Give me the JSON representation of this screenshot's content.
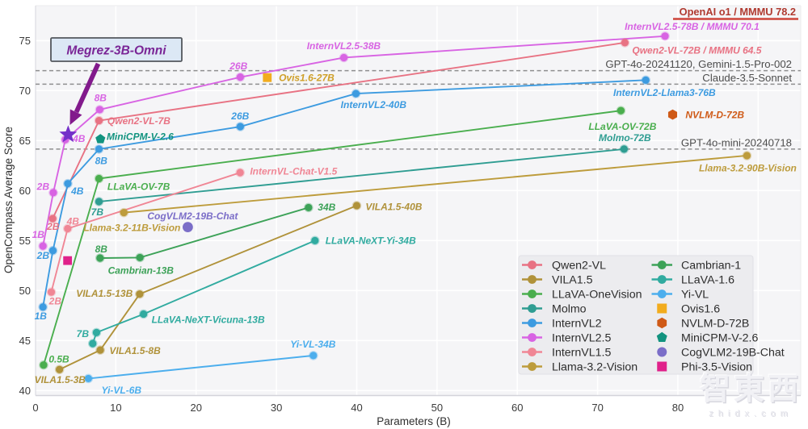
{
  "watermark": {
    "cn": "智東西",
    "latin": "zhidx.com"
  },
  "chart_data": {
    "type": "line",
    "title": "",
    "xlabel": "Parameters (B)",
    "ylabel": "OpenCompass Average Score",
    "xlim": [
      0,
      95.3
    ],
    "ylim": [
      39.5,
      78.5
    ],
    "x_ticks": [
      0,
      10,
      20,
      30,
      40,
      50,
      60,
      70,
      80
    ],
    "y_ticks": [
      40,
      45,
      50,
      55,
      60,
      65,
      70,
      75
    ],
    "x_grid": [
      10,
      20,
      30,
      40,
      50,
      60,
      70,
      80,
      90
    ],
    "grid": true,
    "legend_position": "bottom-right",
    "series": [
      {
        "name": "Qwen2-VL",
        "color": "#e87283",
        "points": [
          [
            2.13,
            57.2
          ],
          [
            7.9,
            67.0
          ],
          [
            73.4,
            74.8
          ]
        ]
      },
      {
        "name": "VILA1.5",
        "color": "#b0923a",
        "points": [
          [
            2.98,
            42.1
          ],
          [
            8.06,
            44.05
          ],
          [
            12.97,
            49.65
          ],
          [
            40.0,
            58.5
          ]
        ]
      },
      {
        "name": "LLaVA-OneVision",
        "color": "#4aae4e",
        "points": [
          [
            1.0,
            42.55
          ],
          [
            7.9,
            61.2
          ],
          [
            72.9,
            68.0
          ]
        ]
      },
      {
        "name": "Molmo",
        "color": "#2f9d92",
        "points": [
          [
            7.9,
            58.9
          ],
          [
            73.3,
            64.15
          ]
        ]
      },
      {
        "name": "InternVL2",
        "color": "#3d9be0",
        "points": [
          [
            0.92,
            48.35
          ],
          [
            2.16,
            54.0
          ],
          [
            4.02,
            60.7
          ],
          [
            7.9,
            64.15
          ],
          [
            25.5,
            66.4
          ],
          [
            39.9,
            69.7
          ],
          [
            76.0,
            71.05
          ]
        ]
      },
      {
        "name": "InternVL2.5",
        "color": "#d864e3",
        "points": [
          [
            0.92,
            54.45
          ],
          [
            2.21,
            59.8
          ],
          [
            3.71,
            65.1
          ],
          [
            7.99,
            68.1
          ],
          [
            25.5,
            71.35
          ],
          [
            38.4,
            73.3
          ],
          [
            78.4,
            75.45
          ]
        ]
      },
      {
        "name": "InternVL1.5",
        "color": "#f08695",
        "points": [
          [
            1.96,
            49.85
          ],
          [
            4.0,
            56.2
          ],
          [
            25.48,
            61.8
          ]
        ]
      },
      {
        "name": "Llama-3.2-Vision",
        "color": "#bd9c3c",
        "points": [
          [
            11.0,
            57.8
          ],
          [
            88.6,
            63.5
          ]
        ]
      },
      {
        "name": "Cambrian-1",
        "color": "#3da258",
        "points": [
          [
            8.03,
            53.25
          ],
          [
            13.0,
            53.3
          ],
          [
            34.0,
            58.3
          ]
        ]
      },
      {
        "name": "LLaVA-1.6",
        "color": "#31aba0",
        "points": [
          [
            7.12,
            44.7
          ],
          [
            7.59,
            45.8
          ],
          [
            13.45,
            47.65
          ],
          [
            34.8,
            55.0
          ]
        ]
      },
      {
        "name": "Yi-VL",
        "color": "#4caeed",
        "points": [
          [
            6.58,
            41.2
          ],
          [
            34.6,
            43.5
          ]
        ]
      }
    ],
    "markers": [
      {
        "name": "Ovis1.6-27B",
        "shape": "square",
        "color": "#f2ac1e",
        "x": 28.86,
        "y": 71.3
      },
      {
        "name": "NVLM-D-72B",
        "shape": "hexagon",
        "color": "#cf5a17",
        "x": 79.35,
        "y": 67.6
      },
      {
        "name": "MiniCPM-V-2.6",
        "shape": "pentagon",
        "color": "#12937f",
        "x": 8.08,
        "y": 65.15
      },
      {
        "name": "CogVLM2-19B-Chat",
        "shape": "circle",
        "color": "#7b6ec8",
        "x": 18.96,
        "y": 56.35
      },
      {
        "name": "Phi-3.5-Vision",
        "shape": "square",
        "color": "#e0218a",
        "x": 3.99,
        "y": 53.0
      }
    ],
    "highlight": {
      "name": "Megrez-3B-Omni",
      "x": 4.06,
      "y": 65.6,
      "star_color": "#7430c9",
      "arrow_color": "#821a8c",
      "callout_text": "Megrez-3B-Omni",
      "callout_text_color": "#7a2596",
      "callout_fill": "#dce8f5",
      "callout_border": "#53575d"
    },
    "annotations": [
      {
        "text": "1B",
        "x": 0.33,
        "y": 55.6,
        "color": "#d864e3",
        "anchor": "middle"
      },
      {
        "text": "2B",
        "x": 0.94,
        "y": 60.4,
        "color": "#d864e3",
        "anchor": "middle"
      },
      {
        "text": "4B",
        "x": 5.41,
        "y": 65.2,
        "color": "#d864e3",
        "anchor": "middle"
      },
      {
        "text": "8B",
        "x": 8.08,
        "y": 69.3,
        "color": "#d864e3",
        "anchor": "middle"
      },
      {
        "text": "26B",
        "x": 25.29,
        "y": 72.45,
        "color": "#d864e3",
        "anchor": "middle"
      },
      {
        "text": "InternVL2.5-38B",
        "x": 38.38,
        "y": 74.5,
        "color": "#d864e3",
        "anchor": "middle"
      },
      {
        "text": "InternVL2.5-78B / MMMU 70.1",
        "x": 81.76,
        "y": 76.4,
        "color": "#d864e3",
        "anchor": "middle"
      },
      {
        "text": "Qwen2-VL-72B / MMMU 64.5",
        "x": 82.36,
        "y": 74.05,
        "color": "#e87283",
        "anchor": "middle"
      },
      {
        "text": "Qwen2-VL-7B",
        "x": 8.95,
        "y": 67.0,
        "color": "#e87283",
        "anchor": "start"
      },
      {
        "text": "2B",
        "x": 2.19,
        "y": 56.4,
        "color": "#e87283",
        "anchor": "middle"
      },
      {
        "text": "MiniCPM-V-2.6",
        "x": 8.85,
        "y": 65.4,
        "color": "#12937f",
        "anchor": "start"
      },
      {
        "text": "8B",
        "x": 8.18,
        "y": 63.0,
        "color": "#3d9be0",
        "anchor": "middle"
      },
      {
        "text": "LLaVA-OV-7B",
        "x": 8.95,
        "y": 60.4,
        "color": "#4aae4e",
        "anchor": "start"
      },
      {
        "text": "7B",
        "x": 7.68,
        "y": 57.85,
        "color": "#2f9d92",
        "anchor": "middle"
      },
      {
        "text": "InternVL-Chat-V1.5",
        "x": 26.7,
        "y": 61.95,
        "color": "#f08695",
        "anchor": "start"
      },
      {
        "text": "26B",
        "x": 25.49,
        "y": 67.45,
        "color": "#3d9be0",
        "anchor": "middle"
      },
      {
        "text": "InternVL2-40B",
        "x": 42.1,
        "y": 68.6,
        "color": "#3d9be0",
        "anchor": "middle"
      },
      {
        "text": "InternVL2-Llama3-76B",
        "x": 78.33,
        "y": 69.8,
        "color": "#3d9be0",
        "anchor": "middle"
      },
      {
        "text": "NVLM-D-72B",
        "x": 80.95,
        "y": 67.6,
        "color": "#cf5a17",
        "anchor": "start"
      },
      {
        "text": "LLaVA-OV-72B",
        "x": 73.1,
        "y": 66.4,
        "color": "#4aae4e",
        "anchor": "middle"
      },
      {
        "text": "Molmo-72B",
        "x": 73.4,
        "y": 65.3,
        "color": "#2f9d92",
        "anchor": "middle"
      },
      {
        "text": "Llama-3.2-90B-Vision",
        "x": 88.7,
        "y": 62.25,
        "color": "#bd9c3c",
        "anchor": "middle"
      },
      {
        "text": "Llama-3.2-11B-Vision",
        "x": 12.01,
        "y": 56.3,
        "color": "#bd9c3c",
        "anchor": "middle"
      },
      {
        "text": "CogVLM2-19B-Chat",
        "x": 19.56,
        "y": 57.45,
        "color": "#7b6ec8",
        "anchor": "middle"
      },
      {
        "text": "Cambrian-13B",
        "x": 13.11,
        "y": 52.0,
        "color": "#3da258",
        "anchor": "middle"
      },
      {
        "text": "8B",
        "x": 8.18,
        "y": 54.15,
        "color": "#3da258",
        "anchor": "middle"
      },
      {
        "text": "34B",
        "x": 36.26,
        "y": 58.35,
        "color": "#3da258",
        "anchor": "middle"
      },
      {
        "text": "VILA1.5-40B",
        "x": 41.1,
        "y": 58.4,
        "color": "#b0923a",
        "anchor": "start"
      },
      {
        "text": "LLaVA-NeXT-Yi-34B",
        "x": 36.1,
        "y": 55.0,
        "color": "#31aba0",
        "anchor": "start"
      },
      {
        "text": "VILA1.5-13B",
        "x": 12.1,
        "y": 49.7,
        "color": "#b0923a",
        "anchor": "end"
      },
      {
        "text": "LLaVA-NeXT-Vicuna-13B",
        "x": 14.45,
        "y": 47.1,
        "color": "#31aba0",
        "anchor": "start"
      },
      {
        "text": "VILA1.5-8B",
        "x": 9.2,
        "y": 44.0,
        "color": "#b0923a",
        "anchor": "start"
      },
      {
        "text": "7B",
        "x": 5.87,
        "y": 45.7,
        "color": "#31aba0",
        "anchor": "middle"
      },
      {
        "text": "VILA1.5-3B",
        "x": 3.05,
        "y": 41.1,
        "color": "#b0923a",
        "anchor": "middle"
      },
      {
        "text": "0.5B",
        "x": 2.92,
        "y": 43.15,
        "color": "#4aae4e",
        "anchor": "middle"
      },
      {
        "text": "Yi-VL-6B",
        "x": 10.7,
        "y": 40.05,
        "color": "#4caeed",
        "anchor": "middle"
      },
      {
        "text": "Yi-VL-34B",
        "x": 34.55,
        "y": 44.65,
        "color": "#4caeed",
        "anchor": "middle"
      },
      {
        "text": "2B",
        "x": 0.94,
        "y": 53.5,
        "color": "#3d9be0",
        "anchor": "middle"
      },
      {
        "text": "4B",
        "x": 5.21,
        "y": 59.95,
        "color": "#3d9be0",
        "anchor": "middle"
      },
      {
        "text": "1B",
        "x": 0.63,
        "y": 47.45,
        "color": "#3d9be0",
        "anchor": "middle"
      },
      {
        "text": "2B",
        "x": 2.45,
        "y": 48.95,
        "color": "#f08695",
        "anchor": "middle"
      },
      {
        "text": "4B",
        "x": 4.66,
        "y": 56.95,
        "color": "#f08695",
        "anchor": "middle"
      },
      {
        "text": "Ovis1.6-27B",
        "x": 30.3,
        "y": 71.3,
        "color": "#cf9f26",
        "anchor": "start"
      }
    ],
    "reference_lines": [
      {
        "label": "GPT-4o-20241120, Gemini-1.5-Pro-002",
        "y": 72.0
      },
      {
        "label": "Claude-3.5-Sonnet",
        "y": 70.65
      },
      {
        "label": "GPT-4o-mini-20240718",
        "y": 64.15
      }
    ],
    "reference_note": {
      "text": "OpenAI o1 / MMMU 78.2",
      "color": "#b03a30",
      "underline_color": "#cd4339"
    },
    "legend": {
      "columns": [
        [
          {
            "label": "Qwen2-VL",
            "color": "#e87283",
            "marker": "line-circle"
          },
          {
            "label": "VILA1.5",
            "color": "#b0923a",
            "marker": "line-circle"
          },
          {
            "label": "LLaVA-OneVision",
            "color": "#4aae4e",
            "marker": "line-circle"
          },
          {
            "label": "Molmo",
            "color": "#2f9d92",
            "marker": "line-circle"
          },
          {
            "label": "InternVL2",
            "color": "#3d9be0",
            "marker": "line-circle"
          },
          {
            "label": "InternVL2.5",
            "color": "#d864e3",
            "marker": "line-circle"
          },
          {
            "label": "InternVL1.5",
            "color": "#f08695",
            "marker": "line-circle"
          },
          {
            "label": "Llama-3.2-Vision",
            "color": "#bd9c3c",
            "marker": "line-circle"
          }
        ],
        [
          {
            "label": "Cambrian-1",
            "color": "#3da258",
            "marker": "line-circle"
          },
          {
            "label": "LLaVA-1.6",
            "color": "#31aba0",
            "marker": "line-circle"
          },
          {
            "label": "Yi-VL",
            "color": "#4caeed",
            "marker": "line-circle"
          },
          {
            "label": "Ovis1.6",
            "color": "#f2ac1e",
            "marker": "square"
          },
          {
            "label": "NVLM-D-72B",
            "color": "#cf5a17",
            "marker": "hexagon"
          },
          {
            "label": "MiniCPM-V-2.6",
            "color": "#12937f",
            "marker": "pentagon"
          },
          {
            "label": "CogVLM2-19B-Chat",
            "color": "#7b6ec8",
            "marker": "circle"
          },
          {
            "label": "Phi-3.5-Vision",
            "color": "#e0218a",
            "marker": "square"
          }
        ]
      ]
    }
  }
}
